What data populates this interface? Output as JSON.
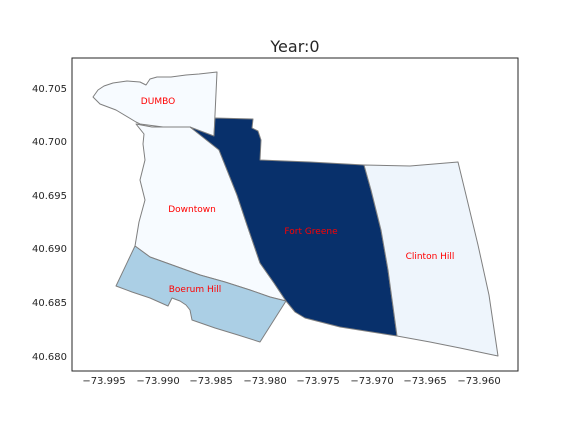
{
  "map": {
    "title": "Year:0",
    "label_color": "#ff0000",
    "x_ticks": [
      "−73.995",
      "−73.990",
      "−73.985",
      "−73.980",
      "−73.975",
      "−73.970",
      "−73.965",
      "−73.960"
    ],
    "y_ticks": [
      "40.705",
      "40.700",
      "40.695",
      "40.690",
      "40.685",
      "40.680"
    ],
    "regions": [
      {
        "name": "DUMBO",
        "fill": "#f7fbff"
      },
      {
        "name": "Downtown",
        "fill": "#f7fbff"
      },
      {
        "name": "Fort Greene",
        "fill": "#08306b"
      },
      {
        "name": "Clinton Hill",
        "fill": "#eef5fc"
      },
      {
        "name": "Boerum Hill",
        "fill": "#abcfe5"
      }
    ]
  }
}
